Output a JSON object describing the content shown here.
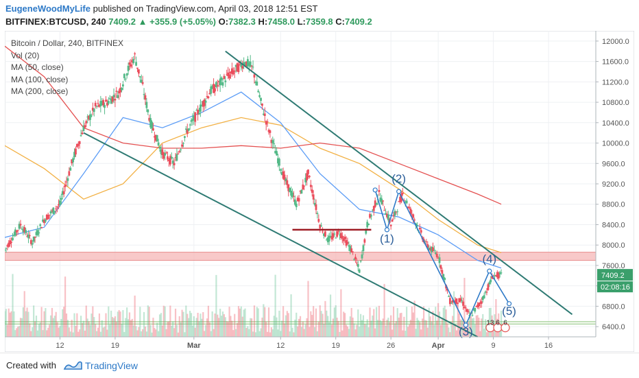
{
  "header": {
    "author": "EugeneWoodMyLife",
    "published_text": "published on TradingView.com, April 03, 2018 12:51 EST",
    "symbol": "BITFINEX:BTCUSD, 240",
    "last": "7409.2",
    "change": "+355.9 (+5.05%)",
    "o_label": "O:",
    "o": "7382.3",
    "h_label": "H:",
    "h": "7458.0",
    "l_label": "L:",
    "l": "7359.8",
    "c_label": "C:",
    "c": "7409.2"
  },
  "legend": {
    "title": "Bitcoin / Dollar, 240, BITFINEX",
    "vol": "Vol (20)",
    "ma50": "MA (50, close)",
    "ma100": "MA (100, close)",
    "ma200": "MA (200, close)"
  },
  "colors": {
    "up": "#53b987",
    "down": "#eb4d5c",
    "ma50": "#f2b043",
    "ma100": "#5b9cf6",
    "ma200": "#e45050",
    "trendline": "#2e7a73",
    "wave": "#2d79c7",
    "zone": "#f5b7b7"
  },
  "chart_data": {
    "type": "candlestick",
    "symbol": "BITFINEX:BTCUSD",
    "interval": "240",
    "ylim": [
      6200,
      12200
    ],
    "y_ticks": [
      6400,
      6800,
      7200,
      7600,
      8000,
      8400,
      8800,
      9200,
      9600,
      10000,
      10400,
      10800,
      11200,
      11600,
      12000
    ],
    "y_tick_labels": [
      "6400.0",
      "6800.0",
      "7200.0",
      "7600.0",
      "8000.0",
      "8400.0",
      "8800.0",
      "9200.0",
      "9600.0",
      "10000.0",
      "10400.0",
      "10800.0",
      "11200.0",
      "11600.0",
      "12000.0"
    ],
    "x_ticks": [
      "12",
      "19",
      "Mar",
      "12",
      "19",
      "26",
      "Apr",
      "9",
      "16"
    ],
    "x_tick_days": [
      12,
      19,
      29,
      40,
      47,
      54,
      60,
      67,
      74
    ],
    "x_range_days": [
      5,
      80
    ],
    "price_anchors": [
      {
        "d": 5.0,
        "p": 7900
      },
      {
        "d": 7.0,
        "p": 8400
      },
      {
        "d": 8.5,
        "p": 8050
      },
      {
        "d": 10.0,
        "p": 8500
      },
      {
        "d": 12.0,
        "p": 8800
      },
      {
        "d": 13.5,
        "p": 9600
      },
      {
        "d": 15.0,
        "p": 10300
      },
      {
        "d": 16.5,
        "p": 10700
      },
      {
        "d": 18.0,
        "p": 10800
      },
      {
        "d": 19.5,
        "p": 11000
      },
      {
        "d": 20.5,
        "p": 11400
      },
      {
        "d": 21.5,
        "p": 11700
      },
      {
        "d": 22.5,
        "p": 11100
      },
      {
        "d": 23.5,
        "p": 10400
      },
      {
        "d": 25.0,
        "p": 9800
      },
      {
        "d": 26.5,
        "p": 9600
      },
      {
        "d": 28.0,
        "p": 10200
      },
      {
        "d": 29.5,
        "p": 10600
      },
      {
        "d": 31.0,
        "p": 11000
      },
      {
        "d": 32.5,
        "p": 11200
      },
      {
        "d": 34.0,
        "p": 11400
      },
      {
        "d": 35.5,
        "p": 11600
      },
      {
        "d": 36.5,
        "p": 11450
      },
      {
        "d": 37.5,
        "p": 10800
      },
      {
        "d": 39.0,
        "p": 10000
      },
      {
        "d": 40.5,
        "p": 9300
      },
      {
        "d": 42.0,
        "p": 8800
      },
      {
        "d": 43.5,
        "p": 9400
      },
      {
        "d": 45.0,
        "p": 8400
      },
      {
        "d": 46.0,
        "p": 8100
      },
      {
        "d": 47.5,
        "p": 8250
      },
      {
        "d": 49.0,
        "p": 7900
      },
      {
        "d": 50.0,
        "p": 7500
      },
      {
        "d": 51.0,
        "p": 8400
      },
      {
        "d": 52.5,
        "p": 9000
      },
      {
        "d": 54.0,
        "p": 8400
      },
      {
        "d": 55.5,
        "p": 9000
      },
      {
        "d": 57.0,
        "p": 8500
      },
      {
        "d": 58.5,
        "p": 8000
      },
      {
        "d": 60.0,
        "p": 7800
      },
      {
        "d": 61.5,
        "p": 6900
      },
      {
        "d": 63.0,
        "p": 6900
      },
      {
        "d": 64.0,
        "p": 6600
      },
      {
        "d": 65.5,
        "p": 6900
      },
      {
        "d": 67.0,
        "p": 7400
      },
      {
        "d": 68.0,
        "p": 7409
      }
    ],
    "moving_averages": [
      {
        "label": "MA (50, close)",
        "color": "#f2b043",
        "points": [
          [
            5,
            9950
          ],
          [
            10,
            9500
          ],
          [
            15,
            8900
          ],
          [
            20,
            9200
          ],
          [
            25,
            10000
          ],
          [
            30,
            10300
          ],
          [
            35,
            10500
          ],
          [
            40,
            10350
          ],
          [
            45,
            9900
          ],
          [
            50,
            9600
          ],
          [
            55,
            9100
          ],
          [
            60,
            8500
          ],
          [
            65,
            8000
          ],
          [
            68,
            7850
          ]
        ]
      },
      {
        "label": "MA (100, close)",
        "color": "#5b9cf6",
        "points": [
          [
            5,
            8150
          ],
          [
            10,
            8350
          ],
          [
            15,
            9400
          ],
          [
            20,
            10500
          ],
          [
            25,
            10300
          ],
          [
            30,
            10600
          ],
          [
            35,
            11000
          ],
          [
            40,
            10400
          ],
          [
            45,
            9400
          ],
          [
            50,
            8700
          ],
          [
            55,
            8550
          ],
          [
            60,
            8200
          ],
          [
            65,
            7700
          ],
          [
            68,
            7550
          ]
        ]
      },
      {
        "label": "MA (200, close)",
        "color": "#e45050",
        "points": [
          [
            5,
            11900
          ],
          [
            10,
            11300
          ],
          [
            15,
            10300
          ],
          [
            20,
            10000
          ],
          [
            25,
            9900
          ],
          [
            30,
            9900
          ],
          [
            35,
            9950
          ],
          [
            40,
            9900
          ],
          [
            45,
            10000
          ],
          [
            50,
            9900
          ],
          [
            55,
            9600
          ],
          [
            60,
            9300
          ],
          [
            65,
            9000
          ],
          [
            68,
            8800
          ]
        ]
      }
    ],
    "horizontal_zone": {
      "from": 7700,
      "to": 7860
    },
    "support_line": {
      "from": 6450,
      "to": 6500
    },
    "short_level": {
      "value": 8300,
      "from_day": 41.5,
      "to_day": 51.5
    },
    "trendlines": [
      {
        "from": {
          "d": 33.0,
          "p": 11800
        },
        "to": {
          "d": 77.0,
          "p": 6640
        }
      },
      {
        "from": {
          "d": 15.0,
          "p": 10200
        },
        "to": {
          "d": 65.0,
          "p": 6200
        }
      }
    ],
    "wave_path": {
      "points": [
        [
          52.0,
          9080
        ],
        [
          53.5,
          8300
        ],
        [
          55.0,
          9050
        ],
        [
          63.5,
          6430
        ],
        [
          66.5,
          7490
        ],
        [
          69.0,
          6850
        ]
      ],
      "labels": [
        {
          "text": "(1)",
          "d": 53.5,
          "p": 8050
        },
        {
          "text": "(2)",
          "d": 55.0,
          "p": 9230
        },
        {
          "text": "(3)",
          "d": 63.5,
          "p": 6230
        },
        {
          "text": "(4)",
          "d": 66.5,
          "p": 7650
        },
        {
          "text": "(5)",
          "d": 69.0,
          "p": 6630
        }
      ]
    },
    "last_price_label": "7409.2",
    "countdown_label": "02:08:16",
    "event_markers": [
      "13",
      "6",
      "6"
    ]
  },
  "footer": {
    "created_with": "Created with",
    "brand": "TradingView"
  }
}
